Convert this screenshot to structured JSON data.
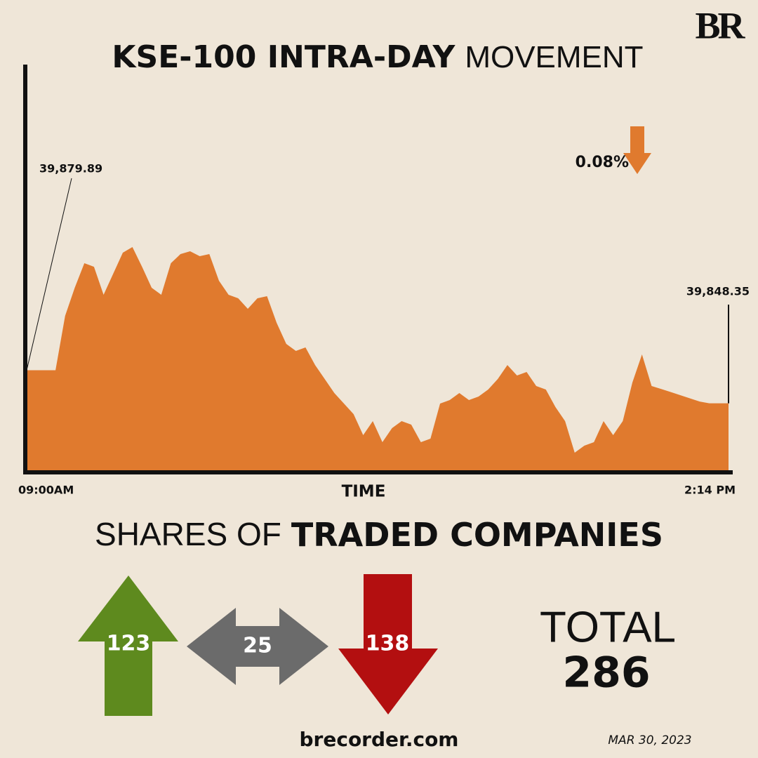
{
  "logo": "BR",
  "chart_data": {
    "type": "area",
    "title": [
      "KSE-100 INTRA-DAY",
      "MOVEMENT"
    ],
    "x_label": "TIME",
    "color": "#e07a2e",
    "change_label": "0.08%",
    "change_color": "#e07a2e",
    "ylim": [
      39783,
      40170
    ],
    "categories": [
      "09:00AM",
      null,
      null,
      null,
      null,
      null,
      null,
      null,
      null,
      null,
      null,
      null,
      null,
      null,
      null,
      null,
      null,
      null,
      null,
      null,
      null,
      null,
      null,
      null,
      null,
      null,
      null,
      null,
      null,
      null,
      null,
      null,
      null,
      null,
      null,
      null,
      null,
      null,
      null,
      null,
      null,
      null,
      null,
      null,
      null,
      null,
      null,
      null,
      null,
      null,
      null,
      null,
      null,
      null,
      null,
      null,
      null,
      null,
      null,
      null,
      null,
      null,
      null,
      null,
      null,
      null,
      null,
      null,
      null,
      null,
      null,
      null,
      null,
      "2:14 PM"
    ],
    "values": [
      39879.89,
      39879.9,
      39879.9,
      39879.9,
      39931.9,
      39958.7,
      39982.2,
      39978.8,
      39952.0,
      39972.1,
      39992.3,
      39997.6,
      39978.8,
      39958.7,
      39952.0,
      39982.2,
      39990.9,
      39993.6,
      39988.9,
      39990.9,
      39965.4,
      39952.0,
      39948.7,
      39938.6,
      39948.7,
      39950.7,
      39925.2,
      39905.1,
      39898.4,
      39901.7,
      39884.9,
      39871.5,
      39858.1,
      39848.1,
      39838.0,
      39817.9,
      39831.3,
      39811.2,
      39824.6,
      39831.3,
      39827.9,
      39811.2,
      39814.5,
      39848.1,
      39851.4,
      39858.1,
      39851.4,
      39854.8,
      39861.5,
      39871.5,
      39884.9,
      39874.9,
      39878.2,
      39864.8,
      39861.5,
      39844.7,
      39831.3,
      39801.1,
      39807.8,
      39811.2,
      39831.3,
      39817.9,
      39831.3,
      39868.2,
      39895.0,
      39864.8,
      39862.0,
      39859.0,
      39856.0,
      39853.0,
      39850.0,
      39848.3,
      39848.3,
      39848.35
    ],
    "value_labels": [
      "39,879.89",
      null,
      null,
      null,
      null,
      null,
      null,
      null,
      null,
      null,
      null,
      null,
      null,
      null,
      null,
      null,
      null,
      null,
      null,
      null,
      null,
      null,
      null,
      null,
      null,
      null,
      null,
      null,
      null,
      null,
      null,
      null,
      null,
      null,
      null,
      null,
      null,
      null,
      null,
      null,
      null,
      null,
      null,
      null,
      null,
      null,
      null,
      null,
      null,
      null,
      null,
      null,
      null,
      null,
      null,
      null,
      null,
      null,
      null,
      null,
      null,
      null,
      null,
      null,
      null,
      null,
      null,
      null,
      null,
      null,
      null,
      null,
      null,
      "39,848.35"
    ]
  },
  "shares": {
    "title": [
      "SHARES OF",
      "TRADED COMPANIES"
    ],
    "advanced": 123,
    "unchanged": 25,
    "declined": 138,
    "total_label": "TOTAL",
    "total": 286
  },
  "footer": {
    "site": "brecorder.com",
    "date": "MAR 30, 2023"
  }
}
